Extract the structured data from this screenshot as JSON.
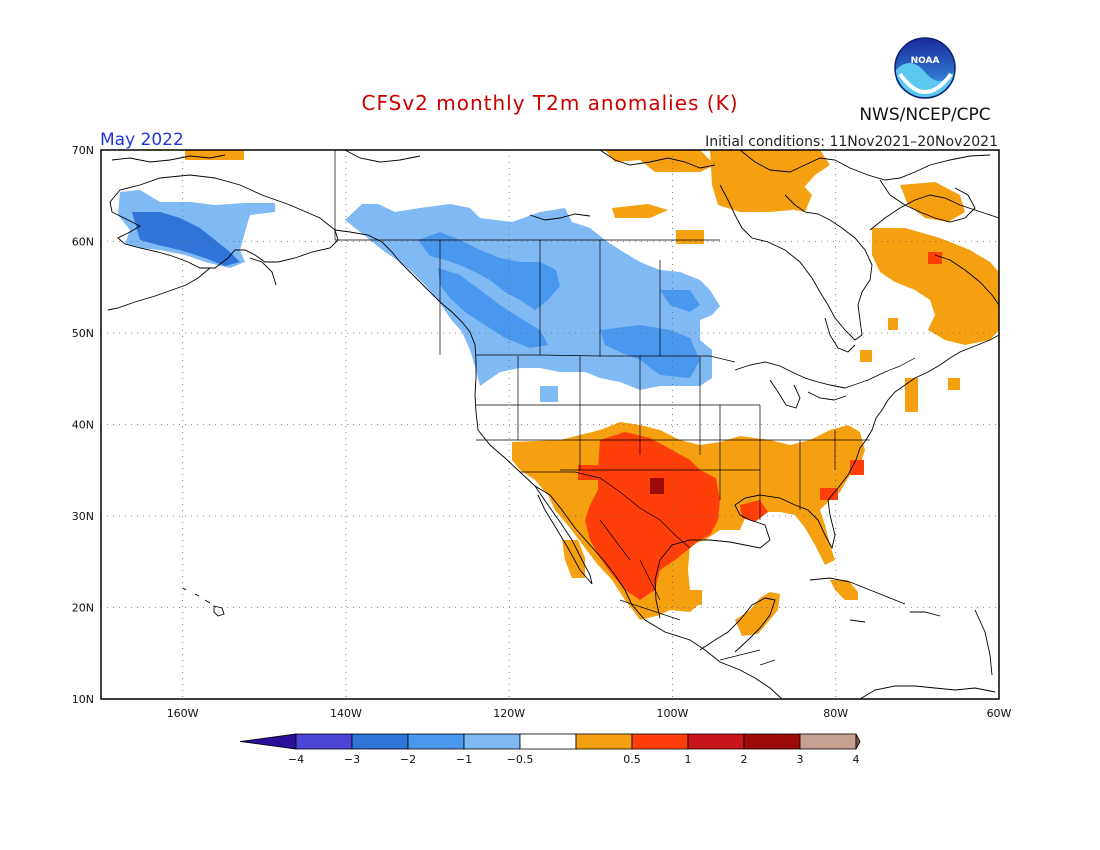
{
  "title": "CFSv2 monthly T2m anomalies (K)",
  "month_label": "May 2022",
  "initial_conditions": "Initial conditions: 11Nov2021–20Nov2021",
  "agency": "NWS/NCEP/CPC",
  "logo_text": "NOAA",
  "colors": {
    "title": "#cc0000",
    "month": "#2233dd",
    "neg4": "#2a0f99",
    "neg3": "#4b44d6",
    "neg2": "#2f74d6",
    "neg1": "#4a97ee",
    "neg05": "#7fbaf5",
    "neutral": "#ffffff",
    "pos05": "#f5a010",
    "pos1": "#ff3f0a",
    "pos2": "#c9141a",
    "pos3": "#9c0a0a",
    "pos4": "#c6a091",
    "pos_max": "#825446"
  },
  "lat_ticks": [
    "70N",
    "60N",
    "50N",
    "40N",
    "30N",
    "20N",
    "10N"
  ],
  "lon_ticks": [
    "160W",
    "140W",
    "120W",
    "100W",
    "80W",
    "60W"
  ],
  "colorbar": {
    "labels": [
      "−4",
      "−3",
      "−2",
      "−1",
      "−0.5",
      "0.5",
      "1",
      "2",
      "3",
      "4"
    ]
  }
}
